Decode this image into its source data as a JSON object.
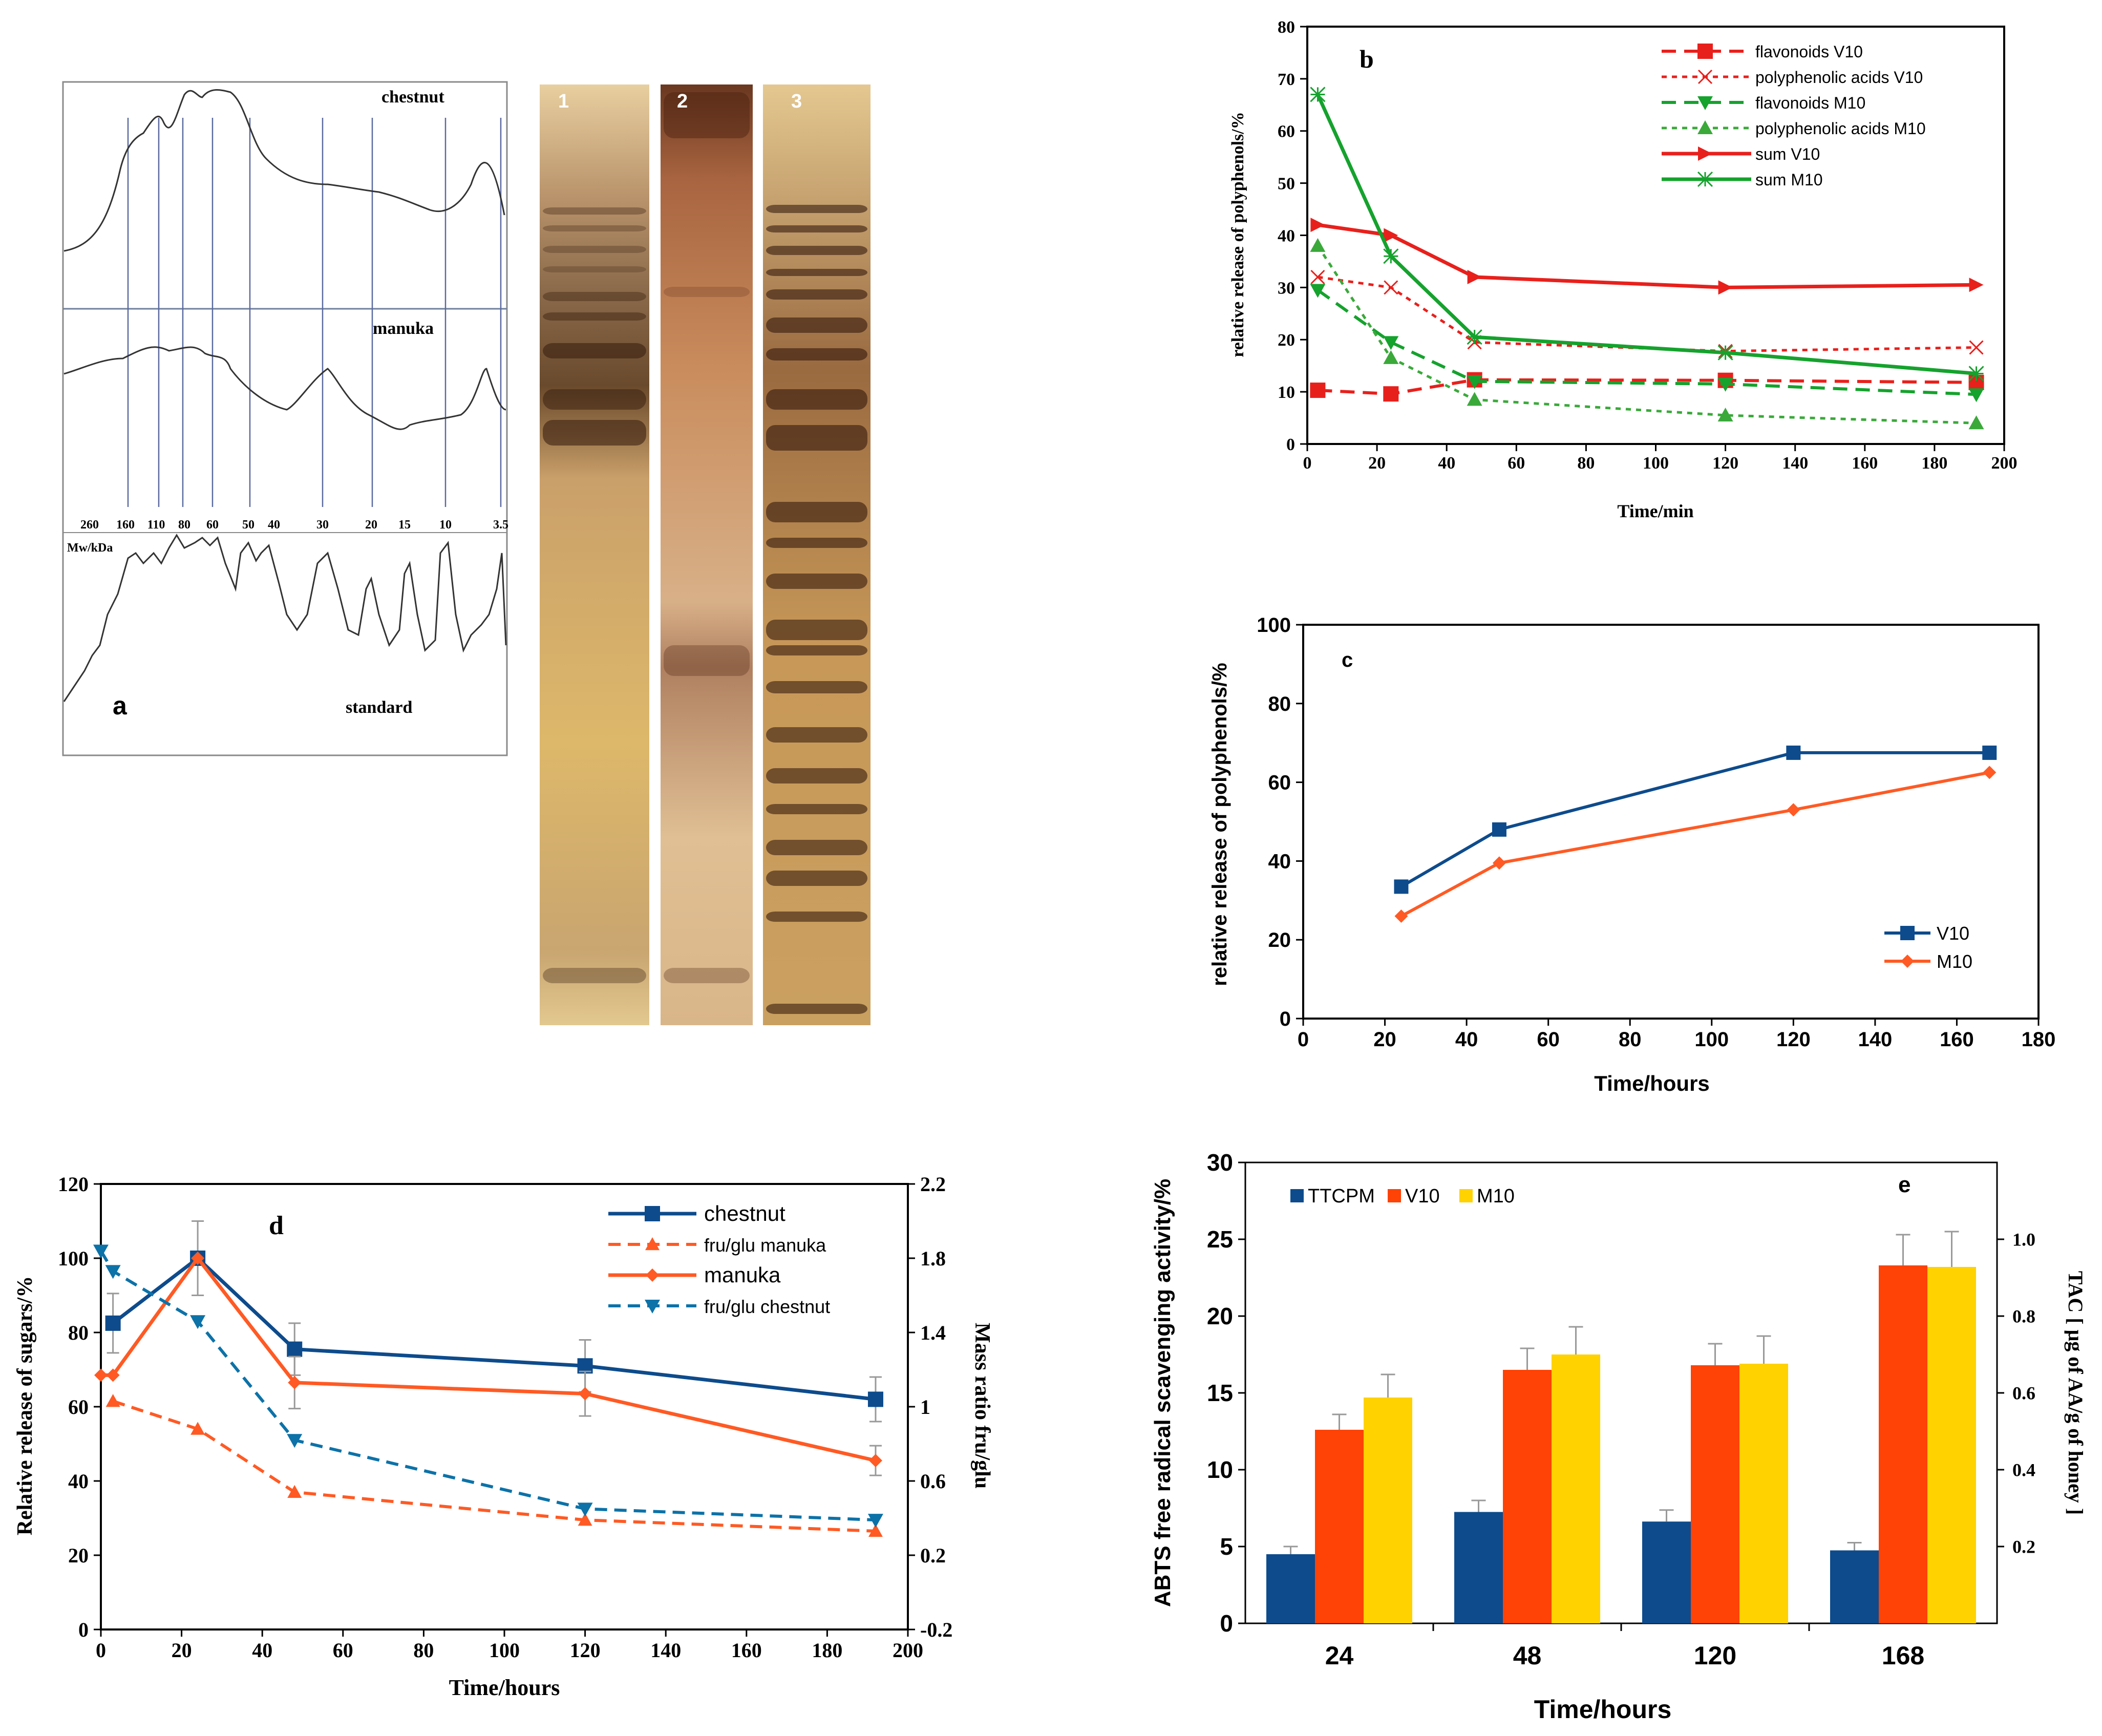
{
  "colors": {
    "v10": "#e8201c",
    "m10": "#15a22d",
    "m10_light": "#3aa93a",
    "navy": "#0d4b8c",
    "orange": "#ff5a24",
    "teal": "#0c72a8",
    "red_bar": "#ff4205",
    "yellow_bar": "#ffd200",
    "lane_bg": "#d4ad55"
  },
  "panel_a": {
    "letter": "a",
    "trace_labels": [
      "chestnut",
      "manuka",
      "standard"
    ],
    "mw_axis_label": "Mw/kDa",
    "mw_ticks": [
      "260",
      "160",
      "110",
      "80",
      "60",
      "50",
      "40",
      "30",
      "20",
      "15",
      "10",
      "3.5"
    ],
    "lanes": [
      "1",
      "2",
      "3"
    ]
  },
  "chart_data": [
    {
      "panel": "b",
      "type": "line",
      "title": "b",
      "xlabel": "Time/min",
      "ylabel": "relative release of polyphenols/%",
      "xlim": [
        0,
        200
      ],
      "ylim": [
        0,
        80
      ],
      "xticks": [
        0,
        20,
        40,
        60,
        80,
        100,
        120,
        140,
        160,
        180,
        200
      ],
      "yticks": [
        0,
        10,
        20,
        30,
        40,
        50,
        60,
        70,
        80
      ],
      "series": [
        {
          "name": "flavonoids V10",
          "x": [
            3,
            24,
            48,
            120,
            192
          ],
          "values": [
            10.3,
            9.6,
            12.3,
            12.2,
            11.8
          ]
        },
        {
          "name": "polyphenolic acids V10",
          "x": [
            3,
            24,
            48,
            120,
            192
          ],
          "values": [
            32,
            30,
            19.5,
            17.8,
            18.5
          ]
        },
        {
          "name": "flavonoids M10",
          "x": [
            3,
            24,
            48,
            120,
            192
          ],
          "values": [
            29.5,
            19.5,
            12,
            11.5,
            9.5
          ]
        },
        {
          "name": "polyphenolic acids M10",
          "x": [
            3,
            24,
            48,
            120,
            192
          ],
          "values": [
            38,
            16.5,
            8.5,
            5.5,
            4
          ]
        },
        {
          "name": "sum V10",
          "x": [
            3,
            24,
            48,
            120,
            192
          ],
          "values": [
            42,
            40,
            32,
            30,
            30.5
          ]
        },
        {
          "name": "sum M10",
          "x": [
            3,
            24,
            48,
            120,
            192
          ],
          "values": [
            67,
            36,
            20.5,
            17.5,
            13.5
          ]
        }
      ]
    },
    {
      "panel": "c",
      "type": "line",
      "title": "c",
      "xlabel": "Time/hours",
      "ylabel": "relative release of polyphenols/%",
      "xlim": [
        0,
        180
      ],
      "ylim": [
        0,
        100
      ],
      "xticks": [
        0,
        20,
        40,
        60,
        80,
        100,
        120,
        140,
        160,
        180
      ],
      "yticks": [
        0,
        20,
        40,
        60,
        80,
        100
      ],
      "series": [
        {
          "name": "V10",
          "x": [
            24,
            48,
            120,
            168
          ],
          "values": [
            33.5,
            48,
            67.5,
            67.5
          ]
        },
        {
          "name": "M10",
          "x": [
            24,
            48,
            120,
            168
          ],
          "values": [
            26,
            39.5,
            53,
            62.5
          ]
        }
      ]
    },
    {
      "panel": "d",
      "type": "line",
      "title": "d",
      "xlabel": "Time/hours",
      "ylabel": "Relative release of sugars/%",
      "y2label": "Mass ratio fru/glu",
      "xlim": [
        0,
        200
      ],
      "ylim": [
        0,
        120
      ],
      "y2lim": [
        -0.2,
        2.2
      ],
      "xticks": [
        0,
        20,
        40,
        60,
        80,
        100,
        120,
        140,
        160,
        180,
        200
      ],
      "yticks": [
        0,
        20,
        40,
        60,
        80,
        100,
        120
      ],
      "y2ticks": [
        "-0.2",
        "0.2",
        "0.6",
        "1",
        "1.4",
        "1.8",
        "2.2"
      ],
      "series": [
        {
          "name": "chestnut",
          "axis": "left",
          "x": [
            3,
            24,
            48,
            120,
            192
          ],
          "values": [
            82.5,
            100,
            75.5,
            71,
            62
          ],
          "errors": [
            8,
            10,
            7,
            7,
            6
          ]
        },
        {
          "name": "fru/glu manuka",
          "axis": "right",
          "x": [
            3,
            24,
            48,
            120,
            192
          ],
          "values": [
            1.03,
            0.88,
            0.54,
            0.39,
            0.33
          ]
        },
        {
          "name": "manuka",
          "axis": "left",
          "x": [
            0,
            3,
            24,
            48,
            120,
            192
          ],
          "values": [
            68.5,
            68.5,
            100,
            66.5,
            63.5,
            45.5
          ],
          "errors": [
            0,
            0,
            0,
            7,
            6,
            4
          ]
        },
        {
          "name": "fru/glu chestnut",
          "axis": "right",
          "x": [
            0,
            3,
            24,
            48,
            120,
            192
          ],
          "values": [
            1.84,
            1.73,
            1.46,
            0.82,
            0.45,
            0.39
          ]
        }
      ]
    },
    {
      "panel": "e",
      "type": "bar",
      "title": "e",
      "xlabel": "Time/hours",
      "ylabel": "ABTS free radical scavenging activity/%",
      "y2label": "TAC [ μg of AA/g of honey ]",
      "categories": [
        "24",
        "48",
        "120",
        "168"
      ],
      "ylim": [
        0,
        30
      ],
      "y2lim": [
        0,
        1.2
      ],
      "yticks": [
        0,
        5,
        10,
        15,
        20,
        25,
        30
      ],
      "y2ticks": [
        "0.2",
        "0.4",
        "0.6",
        "0.8",
        "1.0"
      ],
      "series": [
        {
          "name": "TTCPM",
          "axis": "right",
          "values": [
            0.18,
            0.29,
            0.265,
            0.19
          ],
          "errors": [
            0.02,
            0.03,
            0.03,
            0.02
          ]
        },
        {
          "name": "V10",
          "values": [
            12.6,
            16.5,
            16.8,
            23.3
          ],
          "errors": [
            1,
            1.4,
            1.4,
            2
          ]
        },
        {
          "name": "M10",
          "values": [
            14.7,
            17.5,
            16.9,
            23.2
          ],
          "errors": [
            1.5,
            1.8,
            1.8,
            2.3
          ]
        }
      ]
    }
  ]
}
